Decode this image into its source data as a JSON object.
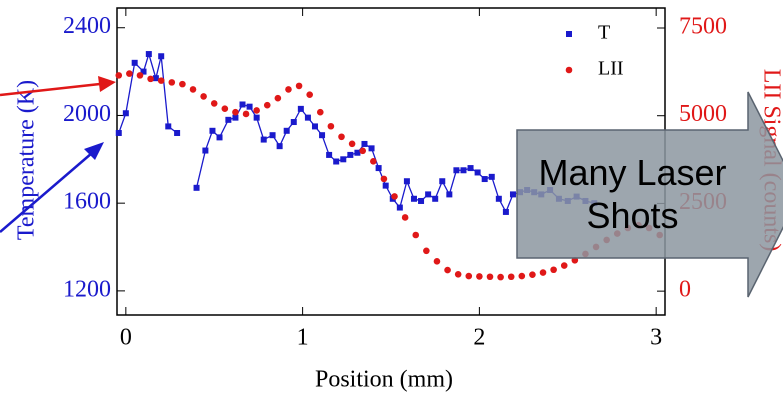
{
  "chart_data": {
    "type": "line",
    "xlabel": "Position (mm)",
    "ylabel": "Temperature (K)",
    "y2label": "LII Signal (counts)",
    "annotation": "Many Laser Shots",
    "xlim": [
      -0.05,
      3.05
    ],
    "xticks": [
      0,
      1,
      2,
      3
    ],
    "ylim": [
      1090,
      2490
    ],
    "yticks": [
      1200,
      1600,
      2000,
      2400
    ],
    "y2lim": [
      -680,
      8070
    ],
    "y2ticks": [
      0,
      2500,
      5000,
      7500
    ],
    "series": [
      {
        "name": "T",
        "color": "#1a1acc",
        "marker": "square",
        "connected": true,
        "x": [
          -0.04,
          0.0,
          0.05,
          0.1,
          0.13,
          0.17,
          0.2,
          0.24,
          0.29,
          0.34,
          0.4,
          0.45,
          0.49,
          0.53,
          0.58,
          0.62,
          0.66,
          0.7,
          0.74,
          0.78,
          0.83,
          0.87,
          0.91,
          0.95,
          0.99,
          1.03,
          1.07,
          1.11,
          1.15,
          1.19,
          1.23,
          1.27,
          1.31,
          1.35,
          1.39,
          1.43,
          1.47,
          1.51,
          1.55,
          1.59,
          1.63,
          1.67,
          1.71,
          1.75,
          1.79,
          1.83,
          1.87,
          1.91,
          1.95,
          1.99,
          2.03,
          2.07,
          2.11,
          2.15,
          2.19,
          2.23,
          2.27,
          2.31,
          2.35,
          2.4,
          2.45,
          2.5,
          2.55,
          2.6,
          2.65
        ],
        "values": [
          1920,
          2010,
          2240,
          2200,
          2280,
          2170,
          2270,
          1950,
          1920,
          null,
          1670,
          1840,
          1930,
          1900,
          1980,
          1990,
          2050,
          2040,
          1990,
          1890,
          1910,
          1860,
          1930,
          1970,
          2030,
          1990,
          1950,
          1910,
          1820,
          1790,
          1800,
          1820,
          1830,
          1870,
          1850,
          1760,
          1680,
          1620,
          1580,
          1700,
          1620,
          1610,
          1640,
          1620,
          1700,
          1640,
          1750,
          1750,
          1760,
          1740,
          1710,
          1720,
          1620,
          1560,
          1640,
          1650,
          1660,
          1650,
          1640,
          1660,
          1620,
          1610,
          1630,
          1610,
          1600
        ]
      },
      {
        "name": "LII",
        "color": "#e01818",
        "marker": "circle",
        "connected": false,
        "axis": "y2",
        "x": [
          -0.04,
          0.02,
          0.08,
          0.14,
          0.2,
          0.26,
          0.32,
          0.38,
          0.44,
          0.5,
          0.56,
          0.62,
          0.68,
          0.74,
          0.8,
          0.86,
          0.92,
          0.98,
          1.04,
          1.1,
          1.16,
          1.22,
          1.28,
          1.34,
          1.4,
          1.46,
          1.52,
          1.58,
          1.64,
          1.7,
          1.76,
          1.82,
          1.88,
          1.94,
          2.0,
          2.06,
          2.12,
          2.18,
          2.24,
          2.3,
          2.36,
          2.42,
          2.48,
          2.54,
          2.6,
          2.66,
          2.72,
          2.78,
          2.84,
          2.9,
          2.96,
          3.02
        ],
        "values": [
          6150,
          6200,
          6150,
          6050,
          6000,
          5950,
          5900,
          5750,
          5550,
          5350,
          5200,
          5100,
          5050,
          5150,
          5300,
          5500,
          5750,
          5850,
          5600,
          5100,
          4700,
          4400,
          4200,
          4000,
          3700,
          3200,
          2700,
          2100,
          1600,
          1150,
          850,
          600,
          480,
          430,
          420,
          410,
          400,
          410,
          430,
          470,
          530,
          610,
          730,
          880,
          1060,
          1260,
          1460,
          1640,
          1800,
          1880,
          1800,
          1600
        ]
      }
    ]
  }
}
